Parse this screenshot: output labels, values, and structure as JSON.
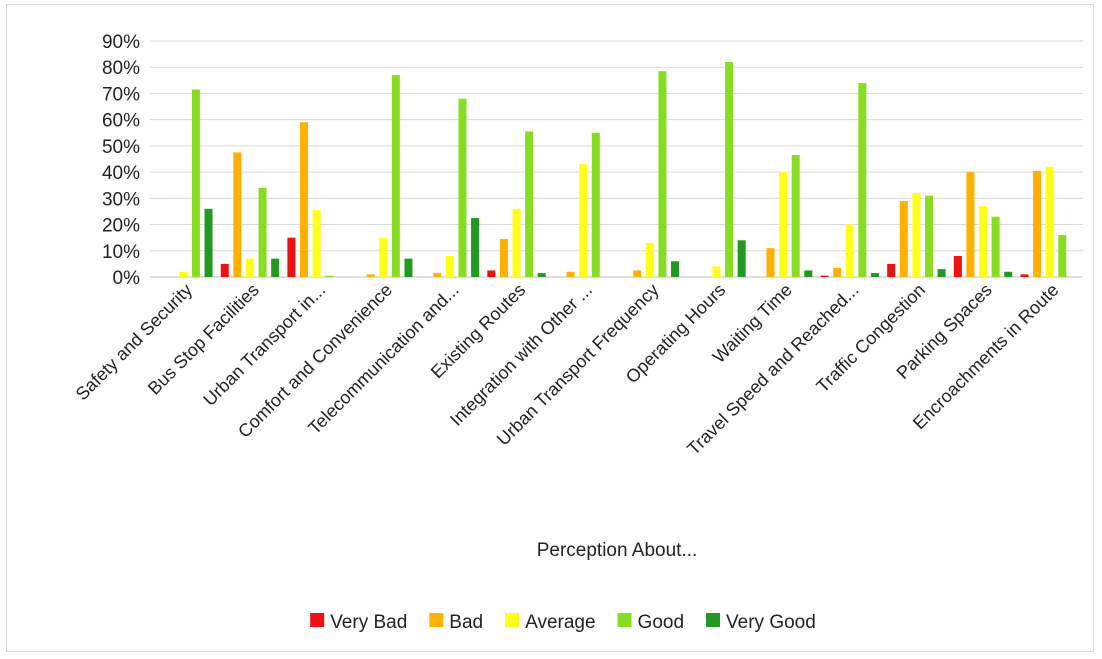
{
  "chart_data": {
    "type": "bar",
    "title": "",
    "xlabel": "Perception About...",
    "ylabel": "",
    "ylim": [
      0,
      90
    ],
    "yticks": [
      "0%",
      "10%",
      "20%",
      "30%",
      "40%",
      "50%",
      "60%",
      "70%",
      "80%",
      "90%"
    ],
    "grid": true,
    "legend_position": "bottom",
    "categories": [
      "Safety and Security",
      "Bus Stop Facilities",
      "Urban Transport in...",
      "Comfort and Convenience",
      "Telecommunication and...",
      "Existing Routes",
      "Integration with Other ...",
      "Urban Transport Frequency",
      "Operating Hours",
      "Waiting Time",
      "Travel Speed and Reached...",
      "Traffic Congestion",
      "Parking Spaces",
      "Encroachments in Route"
    ],
    "series": [
      {
        "name": "Very Bad",
        "color": "#ee1111",
        "values": [
          0,
          5,
          15,
          0,
          0,
          2.5,
          0,
          0,
          0,
          0,
          0.5,
          5,
          8,
          1
        ]
      },
      {
        "name": "Bad",
        "color": "#ffb000",
        "values": [
          0,
          47.5,
          59,
          1,
          1.5,
          14.5,
          2,
          2.5,
          0,
          11,
          3.5,
          29,
          40,
          40.5
        ]
      },
      {
        "name": "Average",
        "color": "#ffff1a",
        "values": [
          2,
          7,
          25.5,
          15,
          8,
          26,
          43,
          13,
          4,
          40,
          20,
          32,
          27,
          42
        ]
      },
      {
        "name": "Good",
        "color": "#88dd22",
        "values": [
          71.5,
          34,
          0.5,
          77,
          68,
          55.5,
          55,
          78.5,
          82,
          46.5,
          74,
          31,
          23,
          16
        ]
      },
      {
        "name": "Very Good",
        "color": "#229922",
        "values": [
          26,
          7,
          0,
          7,
          22.5,
          1.5,
          0,
          6,
          14,
          2.5,
          1.5,
          3,
          2,
          0
        ]
      }
    ]
  }
}
